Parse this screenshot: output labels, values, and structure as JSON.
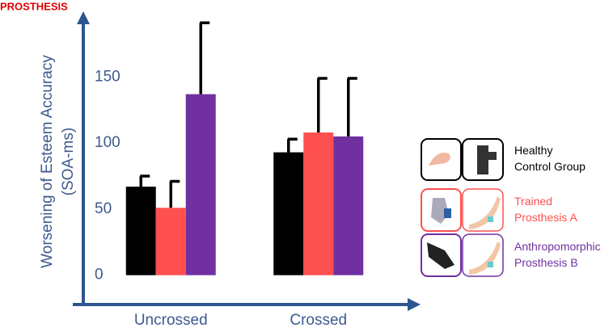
{
  "chart_data": {
    "type": "bar",
    "title": "PROSTHESIS",
    "ylabel": "Worsening of Esteem Accuracy (SOA-ms)",
    "categories": [
      "Uncrossed",
      "Crossed"
    ],
    "series": [
      {
        "name": "Healthy Control Group",
        "color": "#000000",
        "values": [
          67,
          93
        ],
        "errors": [
          8,
          10
        ]
      },
      {
        "name": "Trained Prosthesis A",
        "color": "#ff5050",
        "values": [
          51,
          108
        ],
        "errors": [
          20,
          41
        ]
      },
      {
        "name": "Anthropomorphic Prosthesis B",
        "color": "#7030a0",
        "values": [
          137,
          105
        ],
        "errors": [
          54,
          44
        ]
      }
    ],
    "ylim": [
      -21,
      193
    ],
    "yticks": [
      0,
      50,
      100,
      150
    ]
  }
}
